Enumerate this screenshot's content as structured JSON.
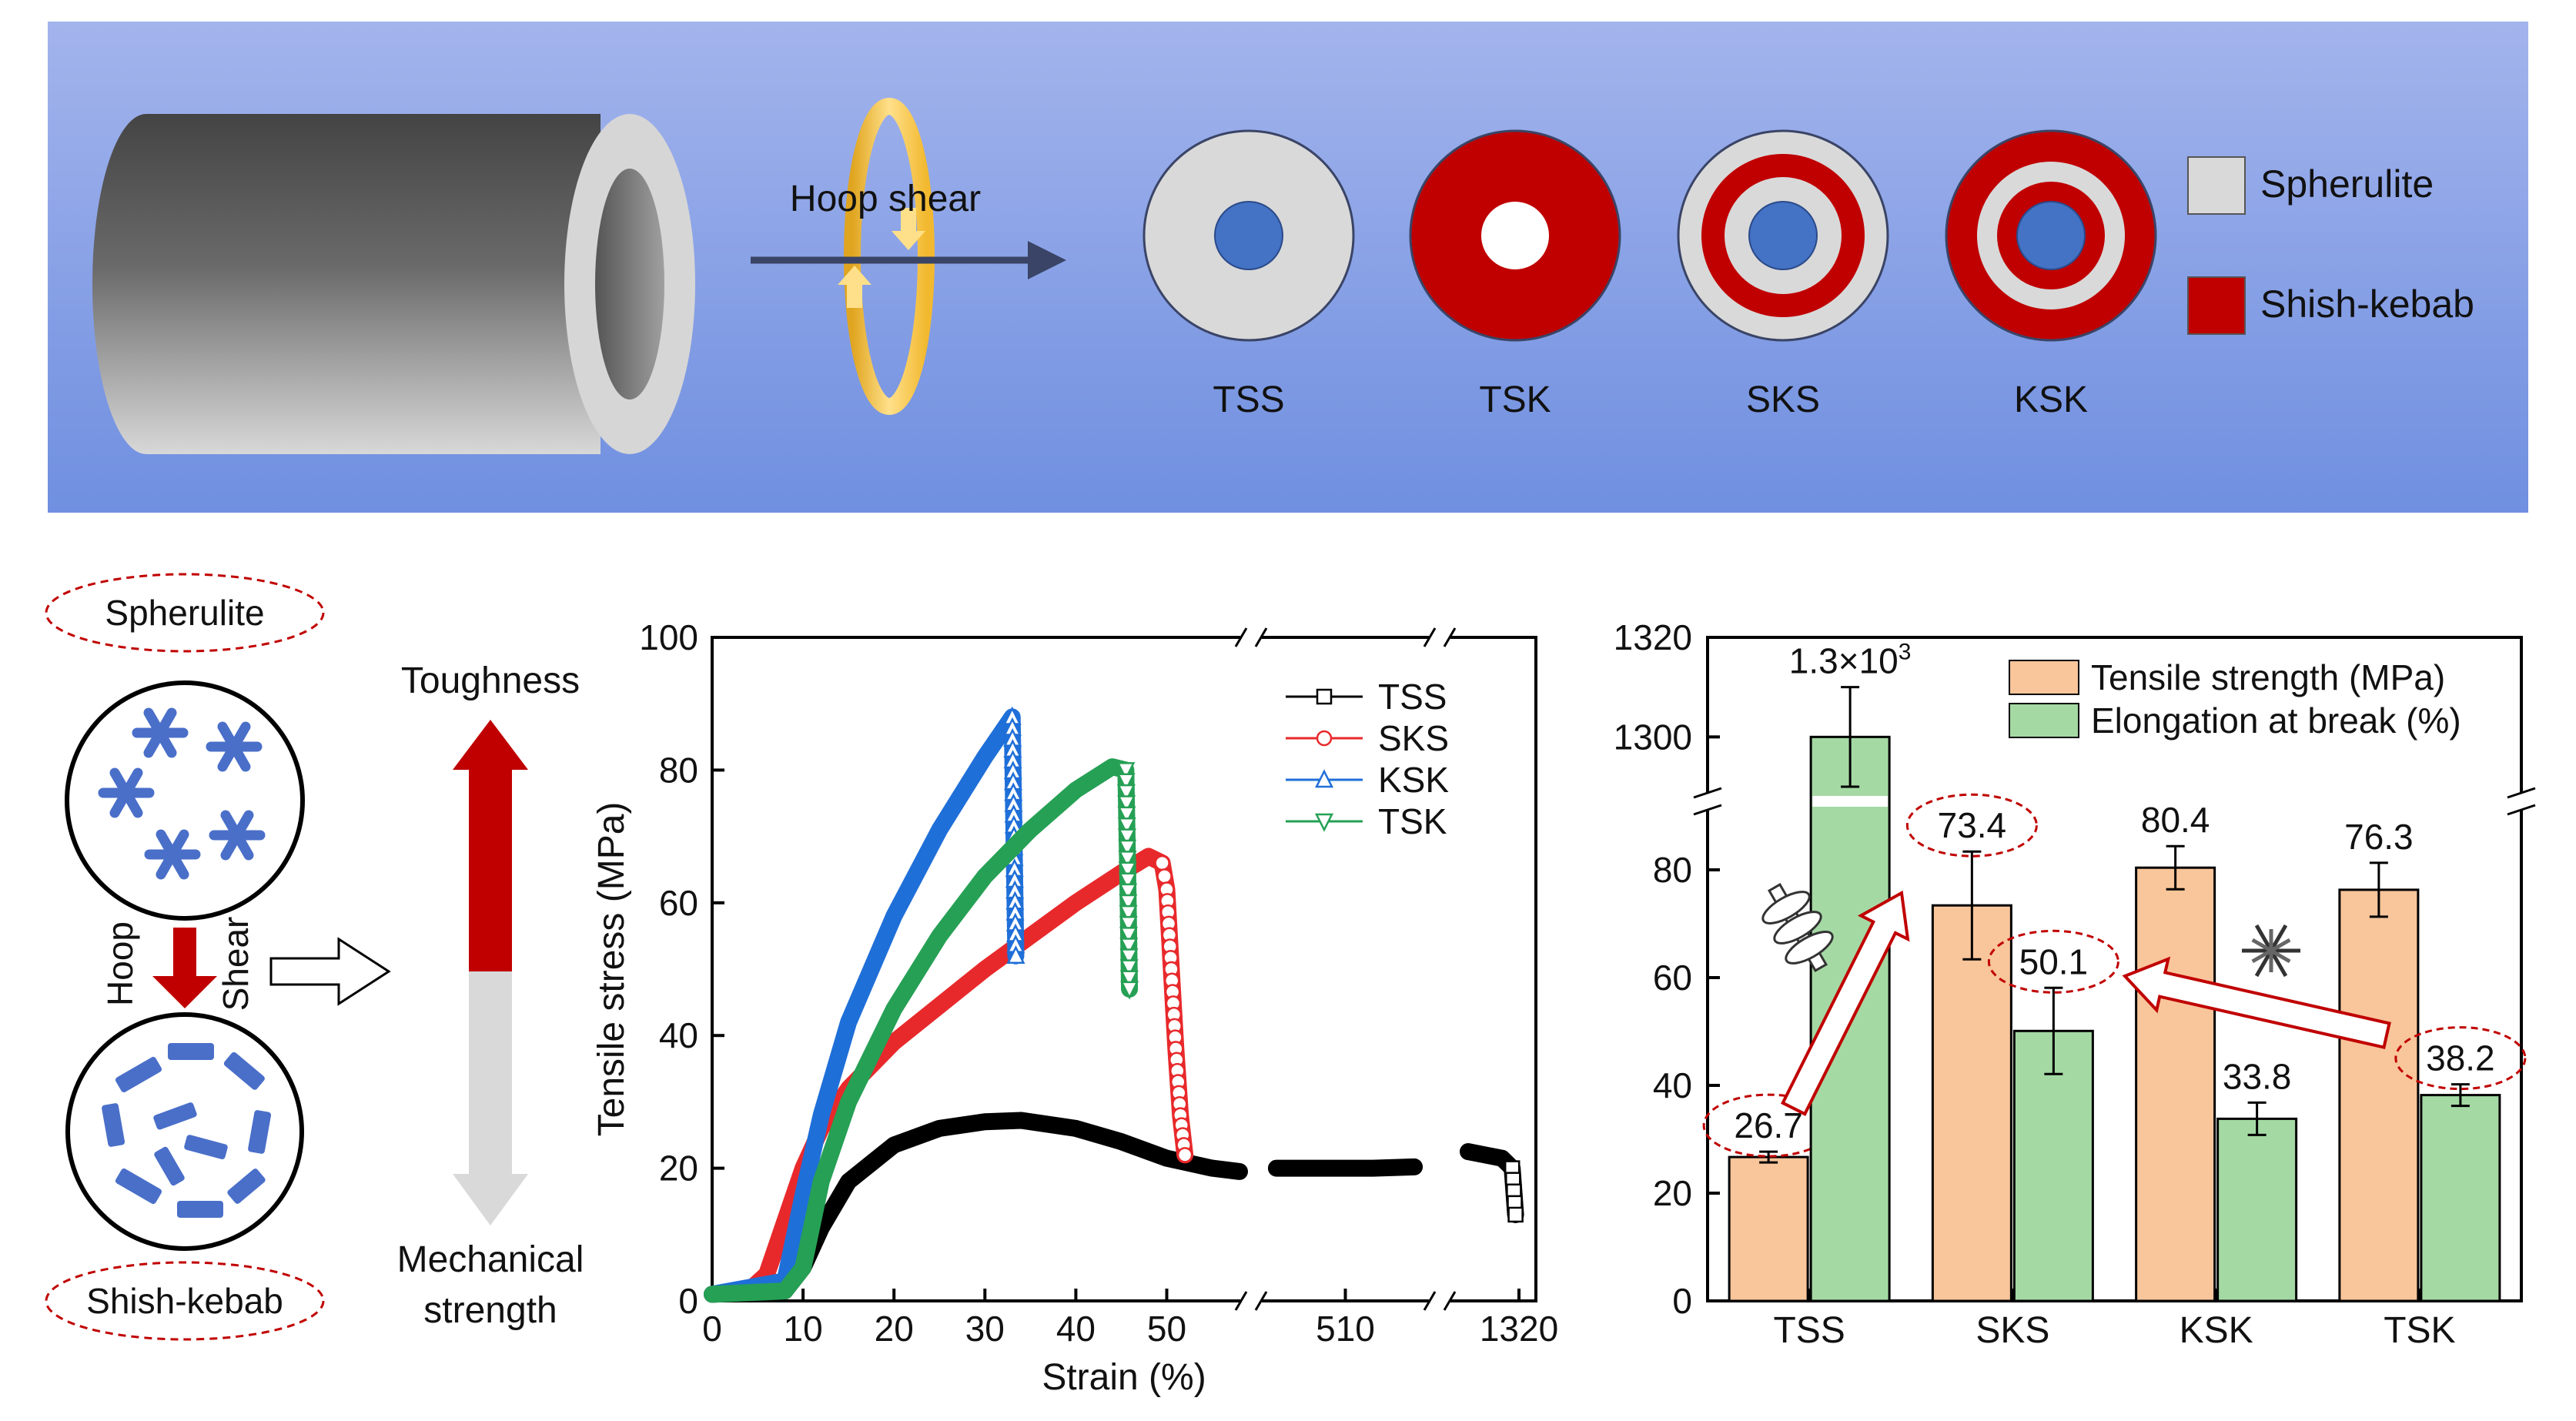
{
  "banner": {
    "arrow_label": "Hoop shear",
    "samples": [
      {
        "label": "TSS",
        "rings": [
          "spherulite",
          "core"
        ]
      },
      {
        "label": "TSK",
        "rings": [
          "shish-kebab",
          "hollow"
        ]
      },
      {
        "label": "SKS",
        "rings": [
          "spherulite",
          "shish-kebab",
          "spherulite",
          "core"
        ]
      },
      {
        "label": "KSK",
        "rings": [
          "shish-kebab",
          "spherulite",
          "shish-kebab",
          "core"
        ]
      }
    ],
    "legend": [
      {
        "label": "Spherulite",
        "color": "#d9d9d9"
      },
      {
        "label": "Shish-kebab",
        "color": "#c00000"
      }
    ],
    "colors": {
      "spherulite": "#d9d9d9",
      "shish_kebab": "#c00000",
      "core": "#4472c4",
      "banner_top": "#a3b4ec",
      "banner_bottom": "#6f8fe0"
    }
  },
  "schematic": {
    "top_label": "Spherulite",
    "bottom_label": "Shish-kebab",
    "process_left": "Hoop",
    "process_right": "Shear",
    "up_label": "Toughness",
    "down_label_1": "Mechanical",
    "down_label_2": "strength"
  },
  "chart_data": [
    {
      "type": "line",
      "title": "",
      "xlabel": "Strain (%)",
      "ylabel": "Tensile stress (MPa)",
      "ylim": [
        0,
        100
      ],
      "yticks": [
        0,
        20,
        40,
        60,
        80,
        100
      ],
      "x_segments": [
        {
          "range": [
            0,
            58
          ],
          "ticks": [
            "0",
            "10",
            "20",
            "30",
            "40",
            "50"
          ]
        },
        {
          "range": [
            480,
            540
          ],
          "ticks": [
            "510"
          ]
        },
        {
          "range": [
            1300,
            1325
          ],
          "ticks": [
            "1320"
          ]
        }
      ],
      "series": [
        {
          "name": "TSS",
          "color": "#000000",
          "marker": "square",
          "x": [
            0,
            8,
            10,
            12,
            15,
            20,
            25,
            30,
            34,
            40,
            45,
            50,
            55,
            58,
            485,
            500,
            510,
            520,
            535,
            1305,
            1310,
            1315,
            1318,
            1319
          ],
          "y": [
            1,
            1.5,
            5,
            11,
            18,
            23.5,
            26,
            27,
            27.2,
            26,
            24,
            21.5,
            20,
            19.5,
            20,
            20,
            20,
            20,
            20.2,
            22.5,
            22,
            21.5,
            20,
            13
          ]
        },
        {
          "name": "SKS",
          "color": "#e8292b",
          "marker": "circle",
          "x": [
            0,
            4,
            6,
            8,
            10,
            12,
            15,
            20,
            25,
            30,
            35,
            40,
            45,
            48,
            49.5,
            50,
            50.5,
            51,
            51.5,
            52
          ],
          "y": [
            1,
            1.5,
            4,
            12,
            20,
            26,
            32,
            39,
            44.5,
            50,
            55,
            60,
            64.5,
            67,
            66,
            62,
            50,
            38,
            28,
            22
          ]
        },
        {
          "name": "KSK",
          "color": "#1f6fd8",
          "marker": "triangle-up",
          "x": [
            0,
            8,
            10,
            12,
            15,
            20,
            25,
            30,
            33,
            33.2,
            33.4
          ],
          "y": [
            1,
            3,
            16,
            28,
            42,
            58,
            71,
            82,
            88,
            70,
            52
          ]
        },
        {
          "name": "TSK",
          "color": "#26a055",
          "marker": "triangle-down",
          "x": [
            0,
            8,
            10,
            12,
            15,
            20,
            25,
            30,
            35,
            40,
            44,
            45.5,
            45.7,
            45.9
          ],
          "y": [
            1,
            1.5,
            5,
            18,
            30,
            44,
            55,
            64,
            71,
            77,
            80.5,
            80,
            65,
            47
          ]
        }
      ]
    },
    {
      "type": "bar",
      "categories": [
        "TSS",
        "SKS",
        "KSK",
        "TSK"
      ],
      "series": [
        {
          "name": "Tensile strength (MPa)",
          "color": "#f9c59a",
          "values": [
            26.7,
            73.4,
            80.4,
            76.3
          ],
          "errors": [
            1,
            10,
            4,
            5
          ],
          "labels": [
            "26.7",
            "73.4",
            "80.4",
            "76.3"
          ]
        },
        {
          "name": "Elongation at break (%)",
          "color": "#a5d9a4",
          "values": [
            1300,
            50.1,
            33.8,
            38.2
          ],
          "errors": [
            10,
            8,
            3,
            2
          ],
          "labels": [
            "1.3×10",
            "50.1",
            "33.8",
            "38.2"
          ]
        }
      ],
      "label_superscript": "3",
      "yticks_lower": [
        0,
        20,
        40,
        60,
        80
      ],
      "yticks_upper": [
        1300,
        1320
      ],
      "ylim_lower": [
        0,
        90
      ],
      "ylim_upper": [
        1290,
        1320
      ],
      "highlighted_labels": [
        "26.7",
        "73.4",
        "50.1",
        "38.2"
      ]
    }
  ]
}
